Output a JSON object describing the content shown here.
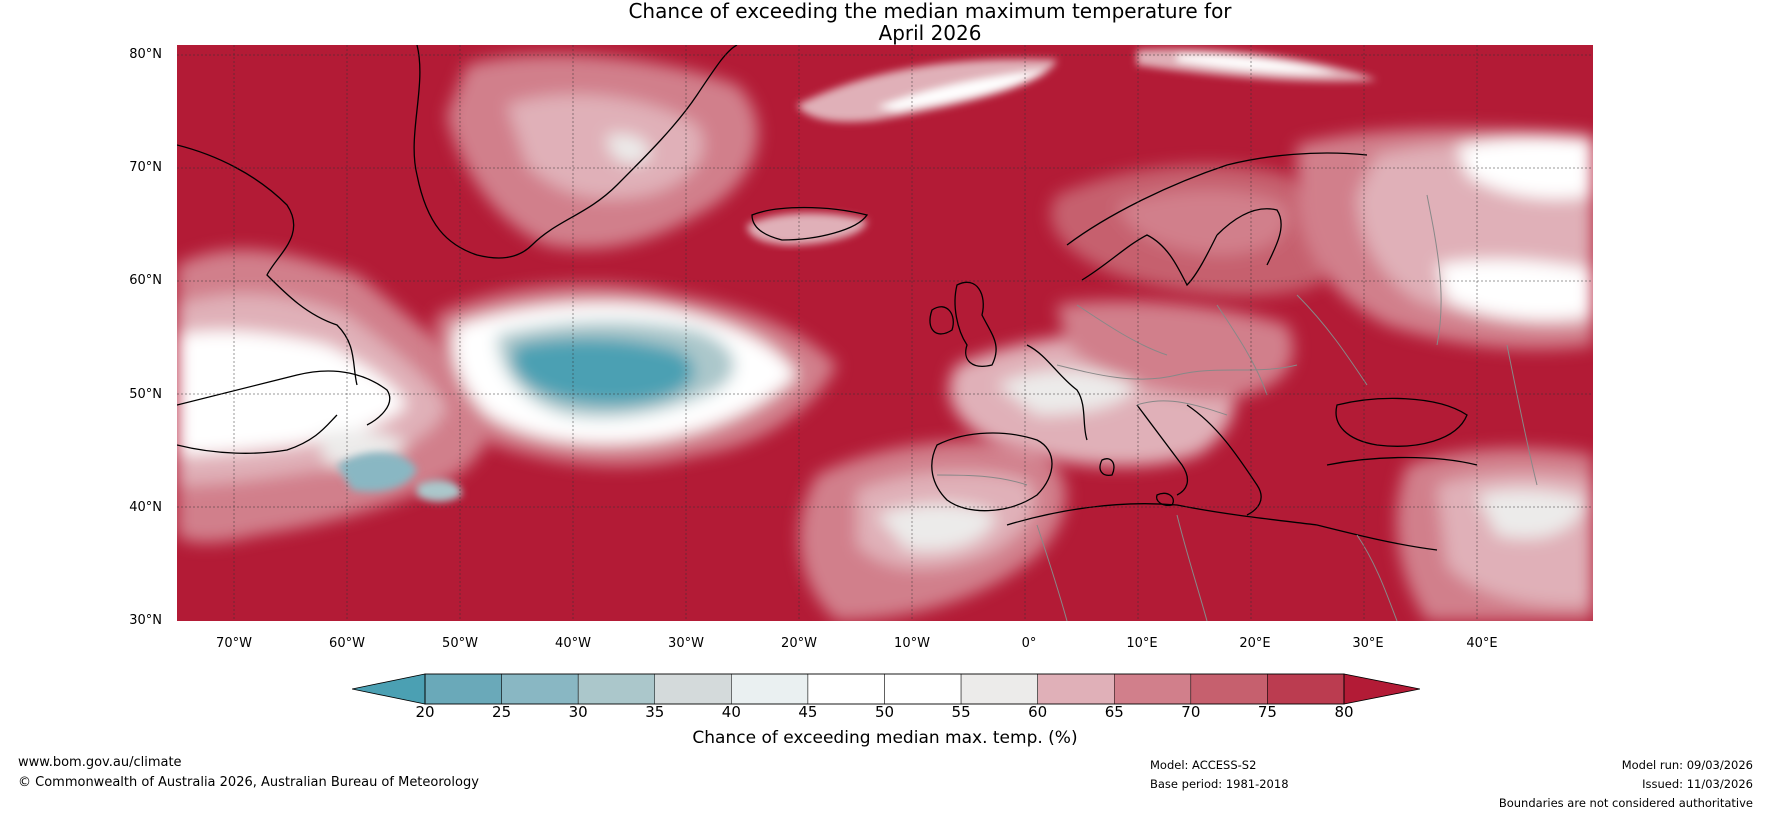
{
  "title": {
    "line1": "Chance of exceeding the median maximum temperature for",
    "line2": "April 2026"
  },
  "map": {
    "region": "North Atlantic and Europe",
    "latitude_labels": [
      "80°N",
      "70°N",
      "60°N",
      "50°N",
      "40°N",
      "30°N"
    ],
    "longitude_labels": [
      "70°W",
      "60°W",
      "50°W",
      "40°W",
      "30°W",
      "20°W",
      "10°W",
      "0°",
      "10°E",
      "20°E",
      "30°E",
      "40°E"
    ]
  },
  "legend": {
    "ticks": [
      "20",
      "25",
      "30",
      "35",
      "40",
      "45",
      "50",
      "55",
      "60",
      "65",
      "70",
      "75",
      "80"
    ],
    "colors": [
      "#4ba0b3",
      "#6aa9b9",
      "#89b7c3",
      "#abc7cb",
      "#d4dadb",
      "#eaf0f1",
      "#ffffff",
      "#ffffff",
      "#ecebea",
      "#e0b0b8",
      "#d17f8b",
      "#c6606e",
      "#bb3c50",
      "#b31b36"
    ],
    "label": "Chance of exceeding median max. temp. (%)"
  },
  "footer": {
    "website": "www.bom.gov.au/climate",
    "copyright": "© Commonwealth of Australia 2026, Australian Bureau of Meteorology",
    "model": "Model: ACCESS-S2",
    "base_period": "Base period: 1981-2018",
    "model_run": "Model run: 09/03/2026",
    "issued": "Issued: 11/03/2026",
    "disclaimer": "Boundaries are not considered authoritative"
  }
}
